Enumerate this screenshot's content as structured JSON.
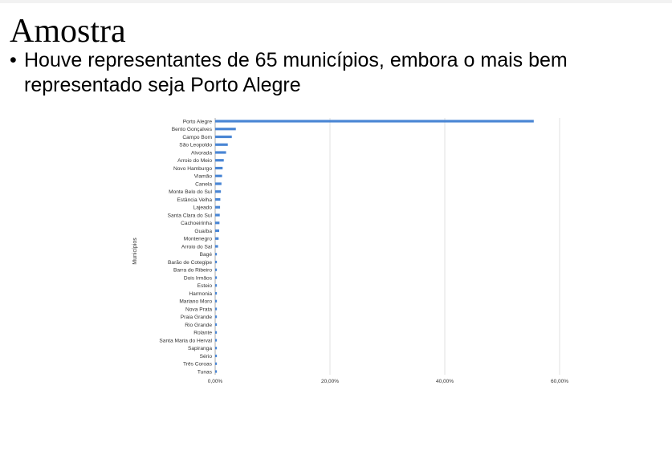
{
  "slide": {
    "title": "Amostra",
    "bullet_symbol": "•",
    "bullet_text": "Houve representantes de 65 municípios, embora o mais bem representado seja Porto Alegre"
  },
  "colors": {
    "bar": "#4a86d4",
    "grid": "#d9d9d9",
    "text": "#333333"
  },
  "chart_data": {
    "type": "bar",
    "orientation": "horizontal",
    "ylabel": "Municípios",
    "xlabel": "",
    "x_ticks": [
      "0,00%",
      "20,00%",
      "40,00%",
      "60,00%"
    ],
    "x_tick_values": [
      0,
      20,
      40,
      60
    ],
    "xlim": [
      0,
      60
    ],
    "grid": "vertical",
    "categories": [
      "Porto Alegre",
      "Bento Gonçalves",
      "Campo Bom",
      "São Leopoldo",
      "Alvorada",
      "Arroio do Meio",
      "Novo Hamburgo",
      "Viamão",
      "Canela",
      "Monte Belo do Sul",
      "Estância Velha",
      "Lajeado",
      "Santa Clara do Sul",
      "Cachoeirinha",
      "Guaíba",
      "Montenegro",
      "Arroio do Sal",
      "Bagé",
      "Barão de Cotegipe",
      "Barra do Ribeiro",
      "Dois Irmãos",
      "Esteio",
      "Harmonia",
      "Mariano Moro",
      "Nova Prata",
      "Praia Grande",
      "Rio Grande",
      "Rolante",
      "Santa Maria do Herval",
      "Sapiranga",
      "Sério",
      "Três Coroas",
      "Tunas"
    ],
    "values": [
      55.5,
      3.6,
      2.9,
      2.2,
      1.9,
      1.5,
      1.3,
      1.2,
      1.1,
      1.0,
      0.9,
      0.85,
      0.8,
      0.75,
      0.7,
      0.6,
      0.5,
      0.3,
      0.3,
      0.3,
      0.3,
      0.3,
      0.3,
      0.3,
      0.3,
      0.3,
      0.3,
      0.3,
      0.3,
      0.3,
      0.3,
      0.3,
      0.3
    ]
  }
}
